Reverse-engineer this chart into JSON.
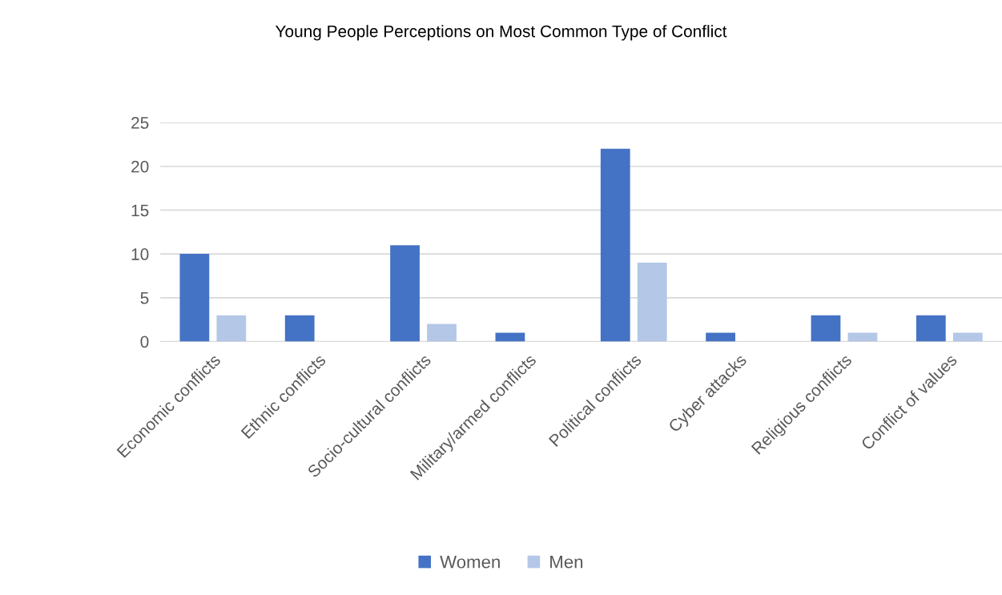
{
  "chart_data": {
    "type": "bar",
    "title": "Young People Perceptions on Most Common Type of Conflict",
    "categories": [
      "Economic conflicts",
      "Ethnic conflicts",
      "Socio-cultural conflicts",
      "Military/armed conflicts",
      "Political conflicts",
      "Cyber attacks",
      "Religious conflicts",
      "Conflict of values"
    ],
    "series": [
      {
        "name": "Women",
        "color": "#4472c4",
        "values": [
          10,
          3,
          11,
          1,
          22,
          1,
          3,
          3
        ]
      },
      {
        "name": "Men",
        "color": "#b4c7e7",
        "values": [
          3,
          0,
          2,
          0,
          9,
          0,
          1,
          1
        ]
      }
    ],
    "ylim": [
      0,
      25
    ],
    "yticks": [
      0,
      5,
      10,
      15,
      20,
      25
    ],
    "grid": "y",
    "legend": "bottom"
  }
}
